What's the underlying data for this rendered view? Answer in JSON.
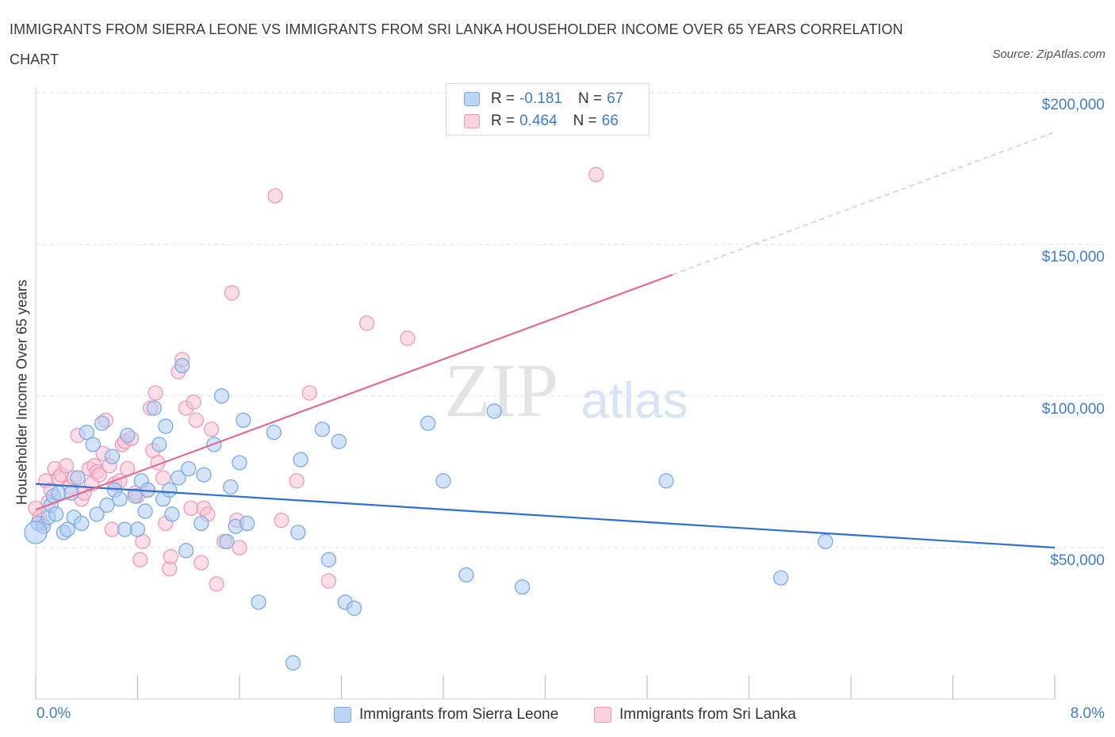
{
  "title": "IMMIGRANTS FROM SIERRA LEONE VS IMMIGRANTS FROM SRI LANKA HOUSEHOLDER INCOME OVER 65 YEARS CORRELATION CHART",
  "source": "Source: ZipAtlas.com",
  "legend": {
    "rows": [
      {
        "r_label": "R =",
        "r_value": "-0.181",
        "n_label": "N =",
        "n_value": "67"
      },
      {
        "r_label": "R =",
        "r_value": "0.464",
        "n_label": "N =",
        "n_value": "66"
      }
    ]
  },
  "colors": {
    "blue_fill": "#aecdf3",
    "blue_stroke": "#7aaae8",
    "blue_line": "#2f6fd0",
    "pink_fill": "#f8c3d4",
    "pink_stroke": "#ef9ab6",
    "pink_line": "#e4698f",
    "axis_text": "#3e7bd6",
    "grid": "#e3e3e3"
  },
  "chart_data": {
    "type": "scatter",
    "title": "IMMIGRANTS FROM SIERRA LEONE VS IMMIGRANTS FROM SRI LANKA HOUSEHOLDER INCOME OVER 65 YEARS CORRELATION CHART",
    "xlabel": "",
    "ylabel": "Householder Income Over 65 years",
    "x_tick_labels": {
      "left": "0.0%",
      "right": "8.0%"
    },
    "y_tick_labels": [
      "$200,000",
      "$150,000",
      "$100,000",
      "$50,000"
    ],
    "y_ticks": [
      200000,
      150000,
      100000,
      50000
    ],
    "xlim": [
      0,
      8
    ],
    "ylim": [
      0,
      210000
    ],
    "grid": true,
    "series": [
      {
        "name": "Immigrants from Sierra Leone",
        "color": "blue",
        "trend": {
          "x": [
            0,
            8
          ],
          "y": [
            71000,
            50000
          ]
        },
        "points": [
          [
            0.02,
            58000
          ],
          [
            0.06,
            57000
          ],
          [
            0.1,
            60000
          ],
          [
            0.12,
            64000
          ],
          [
            0.14,
            67000
          ],
          [
            0.16,
            61000
          ],
          [
            0.18,
            68000
          ],
          [
            0.22,
            55000
          ],
          [
            0.25,
            56000
          ],
          [
            0.28,
            68000
          ],
          [
            0.3,
            60000
          ],
          [
            0.33,
            73000
          ],
          [
            0.36,
            58000
          ],
          [
            0.4,
            88000
          ],
          [
            0.45,
            84000
          ],
          [
            0.48,
            61000
          ],
          [
            0.52,
            91000
          ],
          [
            0.56,
            64000
          ],
          [
            0.6,
            80000
          ],
          [
            0.62,
            69000
          ],
          [
            0.66,
            66000
          ],
          [
            0.7,
            56000
          ],
          [
            0.72,
            87000
          ],
          [
            0.78,
            67000
          ],
          [
            0.8,
            56000
          ],
          [
            0.83,
            72000
          ],
          [
            0.86,
            62000
          ],
          [
            0.88,
            69000
          ],
          [
            0.93,
            96000
          ],
          [
            0.97,
            84000
          ],
          [
            1.0,
            66000
          ],
          [
            1.02,
            90000
          ],
          [
            1.05,
            69000
          ],
          [
            1.07,
            61000
          ],
          [
            1.12,
            73000
          ],
          [
            1.15,
            110000
          ],
          [
            1.18,
            49000
          ],
          [
            1.2,
            76000
          ],
          [
            1.3,
            58000
          ],
          [
            1.32,
            74000
          ],
          [
            1.4,
            84000
          ],
          [
            1.46,
            100000
          ],
          [
            1.5,
            52000
          ],
          [
            1.53,
            70000
          ],
          [
            1.57,
            57000
          ],
          [
            1.6,
            78000
          ],
          [
            1.63,
            92000
          ],
          [
            1.66,
            58000
          ],
          [
            1.75,
            32000
          ],
          [
            1.87,
            88000
          ],
          [
            2.02,
            12000
          ],
          [
            2.06,
            55000
          ],
          [
            2.08,
            79000
          ],
          [
            2.3,
            46000
          ],
          [
            2.25,
            89000
          ],
          [
            2.38,
            85000
          ],
          [
            2.43,
            32000
          ],
          [
            2.5,
            30000
          ],
          [
            3.08,
            91000
          ],
          [
            3.2,
            72000
          ],
          [
            3.38,
            41000
          ],
          [
            3.6,
            95000
          ],
          [
            3.82,
            37000
          ],
          [
            4.95,
            72000
          ],
          [
            5.85,
            40000
          ],
          [
            6.2,
            52000
          ],
          [
            0.0,
            55000
          ]
        ]
      },
      {
        "name": "Immigrants from Sri Lanka",
        "color": "pink",
        "trend": {
          "x": [
            0,
            5.0
          ],
          "y": [
            62500,
            140000
          ]
        },
        "trend_dashed": {
          "x": [
            5.0,
            8
          ],
          "y": [
            140000,
            187000
          ]
        },
        "points": [
          [
            0.03,
            60000
          ],
          [
            0.05,
            58000
          ],
          [
            0.08,
            72000
          ],
          [
            0.12,
            69000
          ],
          [
            0.15,
            76000
          ],
          [
            0.18,
            73000
          ],
          [
            0.2,
            74000
          ],
          [
            0.24,
            77000
          ],
          [
            0.27,
            70000
          ],
          [
            0.3,
            73000
          ],
          [
            0.33,
            87000
          ],
          [
            0.36,
            66000
          ],
          [
            0.38,
            68000
          ],
          [
            0.42,
            76000
          ],
          [
            0.44,
            71000
          ],
          [
            0.46,
            77000
          ],
          [
            0.48,
            75000
          ],
          [
            0.5,
            74000
          ],
          [
            0.53,
            81000
          ],
          [
            0.55,
            92000
          ],
          [
            0.58,
            77000
          ],
          [
            0.6,
            56000
          ],
          [
            0.62,
            71000
          ],
          [
            0.66,
            72000
          ],
          [
            0.68,
            84000
          ],
          [
            0.7,
            85000
          ],
          [
            0.72,
            76000
          ],
          [
            0.75,
            86000
          ],
          [
            0.78,
            68000
          ],
          [
            0.8,
            67000
          ],
          [
            0.82,
            46000
          ],
          [
            0.84,
            52000
          ],
          [
            0.88,
            69000
          ],
          [
            0.9,
            96000
          ],
          [
            0.92,
            82000
          ],
          [
            0.94,
            101000
          ],
          [
            0.96,
            78000
          ],
          [
            1.0,
            73000
          ],
          [
            1.02,
            58000
          ],
          [
            1.05,
            43000
          ],
          [
            1.06,
            47000
          ],
          [
            1.12,
            108000
          ],
          [
            1.15,
            112000
          ],
          [
            1.18,
            96000
          ],
          [
            1.22,
            63000
          ],
          [
            1.24,
            98000
          ],
          [
            1.26,
            92000
          ],
          [
            1.3,
            45000
          ],
          [
            1.32,
            63000
          ],
          [
            1.35,
            61000
          ],
          [
            1.38,
            89000
          ],
          [
            1.42,
            38000
          ],
          [
            1.48,
            52000
          ],
          [
            1.54,
            134000
          ],
          [
            1.58,
            59000
          ],
          [
            1.6,
            50000
          ],
          [
            1.88,
            166000
          ],
          [
            1.93,
            59000
          ],
          [
            2.05,
            72000
          ],
          [
            2.15,
            101000
          ],
          [
            2.3,
            39000
          ],
          [
            2.6,
            124000
          ],
          [
            2.92,
            119000
          ],
          [
            4.4,
            173000
          ],
          [
            0.0,
            63000
          ],
          [
            0.1,
            65000
          ]
        ]
      }
    ]
  },
  "bottom_legend": [
    {
      "label": "Immigrants from Sierra Leone",
      "color": "blue"
    },
    {
      "label": "Immigrants from Sri Lanka",
      "color": "pink"
    }
  ],
  "watermark": {
    "part1": "ZIP",
    "part2": "atlas"
  }
}
